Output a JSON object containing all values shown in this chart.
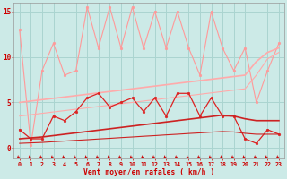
{
  "x": [
    0,
    1,
    2,
    3,
    4,
    5,
    6,
    7,
    8,
    9,
    10,
    11,
    12,
    13,
    14,
    15,
    16,
    17,
    18,
    19,
    20,
    21,
    22,
    23
  ],
  "background_color": "#cceae7",
  "grid_color": "#aad4d0",
  "xlabel": "Vent moyen/en rafales ( km/h )",
  "xlabel_color": "#cc0000",
  "tick_color": "#cc0000",
  "ylim": [
    -1.2,
    16
  ],
  "xlim": [
    -0.5,
    23.5
  ],
  "yticks": [
    0,
    5,
    10,
    15
  ],
  "series_light_jagged": {
    "values": [
      13,
      0.3,
      8.5,
      11.5,
      8.0,
      8.5,
      15.5,
      11.0,
      15.5,
      11.0,
      15.5,
      11.0,
      15.0,
      11.0,
      15.0,
      11.0,
      8.0,
      15.0,
      11.0,
      8.5,
      11.0,
      5.0,
      8.5,
      11.5
    ],
    "color": "#ff9999",
    "lw": 0.8,
    "marker": "o",
    "ms": 2.0
  },
  "series_light_trend1": {
    "values": [
      5.0,
      5.15,
      5.3,
      5.45,
      5.6,
      5.75,
      5.9,
      6.05,
      6.2,
      6.35,
      6.5,
      6.65,
      6.8,
      6.95,
      7.1,
      7.25,
      7.4,
      7.55,
      7.7,
      7.85,
      8.0,
      9.5,
      10.5,
      11.0
    ],
    "color": "#ffaaaa",
    "lw": 1.2,
    "marker": null
  },
  "series_light_trend2": {
    "values": [
      3.5,
      3.65,
      3.8,
      3.95,
      4.1,
      4.25,
      4.4,
      4.55,
      4.7,
      4.85,
      5.0,
      5.15,
      5.3,
      5.45,
      5.6,
      5.75,
      5.9,
      6.05,
      6.2,
      6.35,
      6.5,
      8.0,
      9.8,
      10.5
    ],
    "color": "#ffaaaa",
    "lw": 0.8,
    "marker": null
  },
  "series_dark_jagged": {
    "values": [
      2.0,
      1.0,
      1.0,
      3.5,
      3.0,
      4.0,
      5.5,
      6.0,
      4.5,
      5.0,
      5.5,
      4.0,
      5.5,
      3.5,
      6.0,
      6.0,
      3.5,
      5.5,
      3.5,
      3.5,
      1.0,
      0.5,
      2.0,
      1.5
    ],
    "color": "#dd2222",
    "lw": 0.9,
    "marker": "o",
    "ms": 2.0
  },
  "series_dark_trend1": {
    "values": [
      1.0,
      1.1,
      1.2,
      1.35,
      1.5,
      1.65,
      1.8,
      1.95,
      2.1,
      2.25,
      2.4,
      2.55,
      2.7,
      2.85,
      3.0,
      3.15,
      3.3,
      3.45,
      3.6,
      3.5,
      3.2,
      3.0,
      3.0,
      3.0
    ],
    "color": "#cc2222",
    "lw": 1.2,
    "marker": null
  },
  "series_dark_trend2": {
    "values": [
      0.5,
      0.55,
      0.6,
      0.68,
      0.75,
      0.83,
      0.9,
      0.98,
      1.05,
      1.13,
      1.2,
      1.28,
      1.35,
      1.43,
      1.5,
      1.58,
      1.65,
      1.73,
      1.8,
      1.75,
      1.6,
      1.5,
      1.5,
      1.5
    ],
    "color": "#cc2222",
    "lw": 0.8,
    "marker": null
  },
  "wind_arrows": {
    "y": -0.85,
    "color": "#cc0000"
  }
}
